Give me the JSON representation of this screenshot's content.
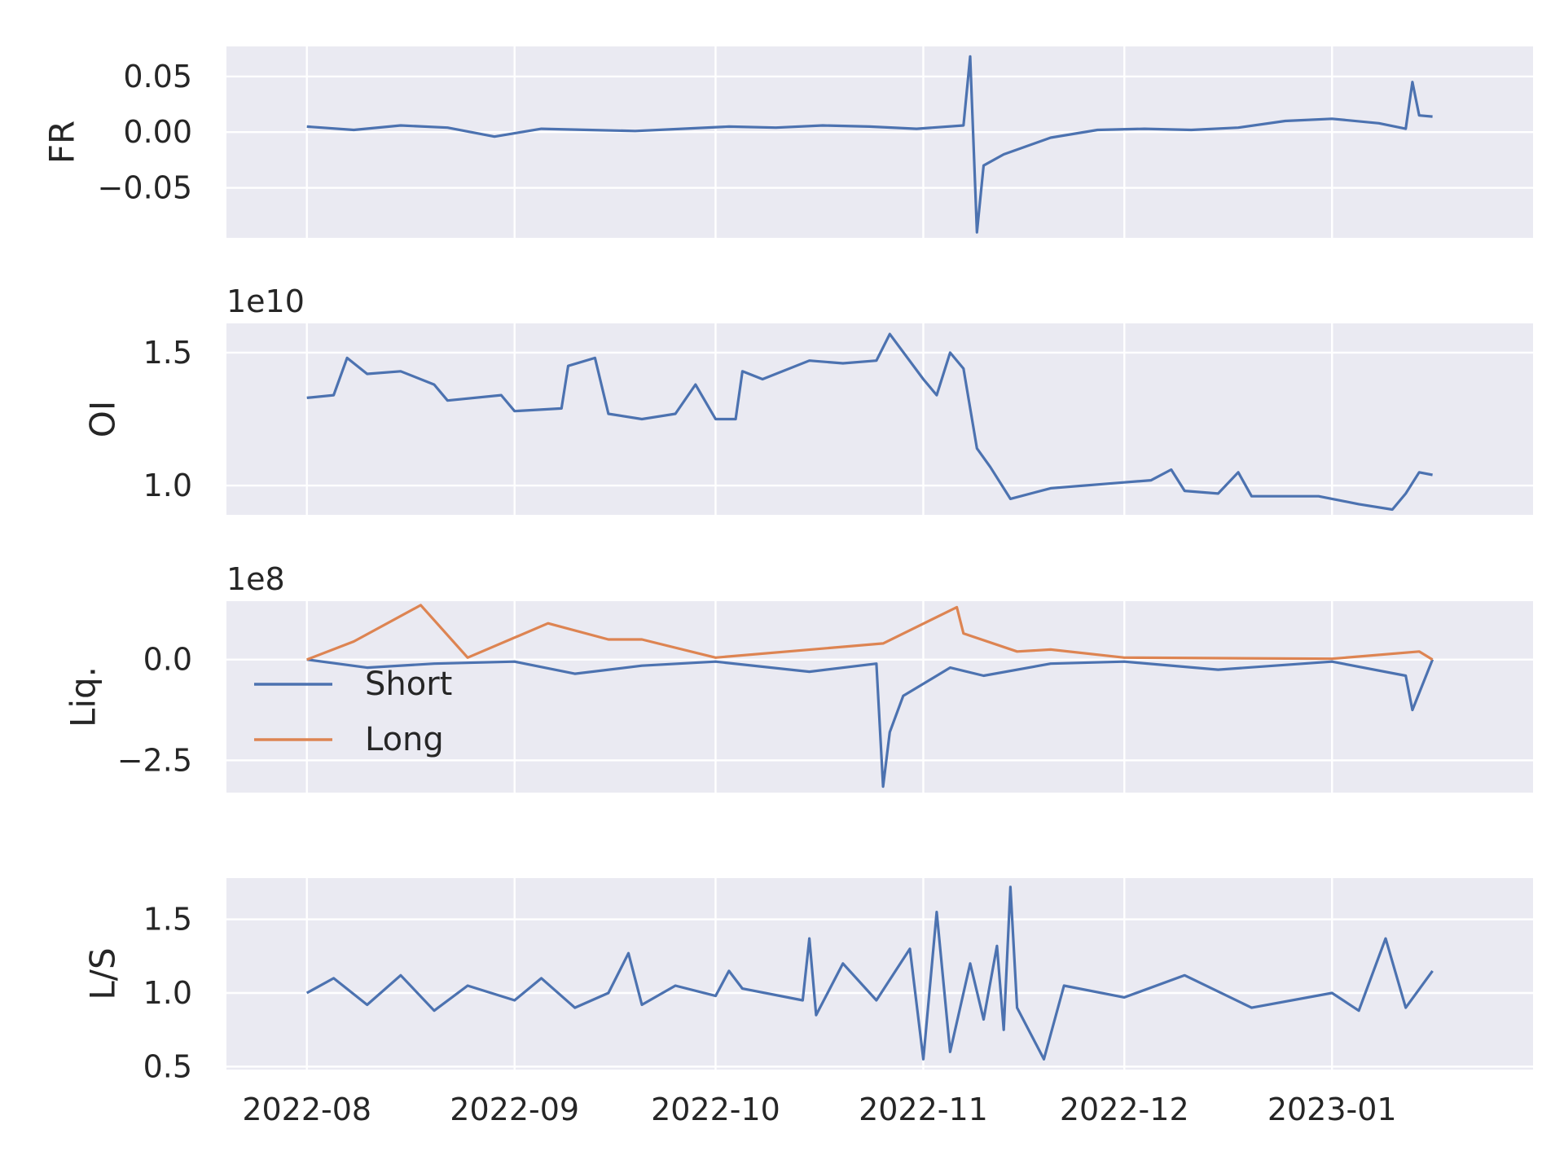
{
  "theme": {
    "facecolor": "#eaeaf2",
    "gridcolor": "#ffffff",
    "textcolor": "#262626",
    "series_colors": {
      "blue": "#4c72b0",
      "orange": "#dd8452"
    }
  },
  "x_axis": {
    "type": "date",
    "range": [
      "2022-07-20",
      "2023-01-31"
    ],
    "ticks": [
      "2022-08-01",
      "2022-09-01",
      "2022-10-01",
      "2022-11-01",
      "2022-12-01",
      "2023-01-01"
    ],
    "tick_labels": [
      "2022-08",
      "2022-09",
      "2022-10",
      "2022-11",
      "2022-12",
      "2023-01"
    ]
  },
  "chart_data": [
    {
      "type": "line",
      "ylabel": "FR",
      "offset_text": "",
      "ylim": [
        -0.095,
        0.077
      ],
      "yticks": [
        -0.05,
        0.0,
        0.05
      ],
      "ytick_labels": [
        "−0.05",
        "0.00",
        "0.05"
      ],
      "grid": true,
      "series": [
        {
          "color": "#4c72b0",
          "points": [
            [
              "2022-08-01",
              0.005
            ],
            [
              "2022-08-08",
              0.002
            ],
            [
              "2022-08-15",
              0.006
            ],
            [
              "2022-08-22",
              0.004
            ],
            [
              "2022-08-29",
              -0.004
            ],
            [
              "2022-09-05",
              0.003
            ],
            [
              "2022-09-12",
              0.002
            ],
            [
              "2022-09-19",
              0.001
            ],
            [
              "2022-09-26",
              0.003
            ],
            [
              "2022-10-03",
              0.005
            ],
            [
              "2022-10-10",
              0.004
            ],
            [
              "2022-10-17",
              0.006
            ],
            [
              "2022-10-24",
              0.005
            ],
            [
              "2022-10-31",
              0.003
            ],
            [
              "2022-11-07",
              0.006
            ],
            [
              "2022-11-08",
              0.068
            ],
            [
              "2022-11-09",
              -0.09
            ],
            [
              "2022-11-10",
              -0.03
            ],
            [
              "2022-11-13",
              -0.02
            ],
            [
              "2022-11-20",
              -0.005
            ],
            [
              "2022-11-27",
              0.002
            ],
            [
              "2022-12-04",
              0.003
            ],
            [
              "2022-12-11",
              0.002
            ],
            [
              "2022-12-18",
              0.004
            ],
            [
              "2022-12-25",
              0.01
            ],
            [
              "2023-01-01",
              0.012
            ],
            [
              "2023-01-08",
              0.008
            ],
            [
              "2023-01-12",
              0.003
            ],
            [
              "2023-01-13",
              0.045
            ],
            [
              "2023-01-14",
              0.015
            ],
            [
              "2023-01-16",
              0.014
            ]
          ]
        }
      ]
    },
    {
      "type": "line",
      "ylabel": "OI",
      "offset_text": "1e10",
      "ylim": [
        0.89,
        1.61
      ],
      "yticks": [
        1.0,
        1.5
      ],
      "ytick_labels": [
        "1.0",
        "1.5"
      ],
      "grid": true,
      "series": [
        {
          "color": "#4c72b0",
          "points": [
            [
              "2022-08-01",
              1.33
            ],
            [
              "2022-08-05",
              1.34
            ],
            [
              "2022-08-07",
              1.48
            ],
            [
              "2022-08-10",
              1.42
            ],
            [
              "2022-08-15",
              1.43
            ],
            [
              "2022-08-20",
              1.38
            ],
            [
              "2022-08-22",
              1.32
            ],
            [
              "2022-08-30",
              1.34
            ],
            [
              "2022-09-01",
              1.28
            ],
            [
              "2022-09-08",
              1.29
            ],
            [
              "2022-09-09",
              1.45
            ],
            [
              "2022-09-13",
              1.48
            ],
            [
              "2022-09-15",
              1.27
            ],
            [
              "2022-09-20",
              1.25
            ],
            [
              "2022-09-25",
              1.27
            ],
            [
              "2022-09-28",
              1.38
            ],
            [
              "2022-10-01",
              1.25
            ],
            [
              "2022-10-04",
              1.25
            ],
            [
              "2022-10-05",
              1.43
            ],
            [
              "2022-10-08",
              1.4
            ],
            [
              "2022-10-15",
              1.47
            ],
            [
              "2022-10-20",
              1.46
            ],
            [
              "2022-10-25",
              1.47
            ],
            [
              "2022-10-27",
              1.57
            ],
            [
              "2022-11-01",
              1.4
            ],
            [
              "2022-11-03",
              1.34
            ],
            [
              "2022-11-05",
              1.5
            ],
            [
              "2022-11-07",
              1.44
            ],
            [
              "2022-11-09",
              1.14
            ],
            [
              "2022-11-11",
              1.07
            ],
            [
              "2022-11-14",
              0.95
            ],
            [
              "2022-11-20",
              0.99
            ],
            [
              "2022-11-30",
              1.01
            ],
            [
              "2022-12-05",
              1.02
            ],
            [
              "2022-12-08",
              1.06
            ],
            [
              "2022-12-10",
              0.98
            ],
            [
              "2022-12-15",
              0.97
            ],
            [
              "2022-12-18",
              1.05
            ],
            [
              "2022-12-20",
              0.96
            ],
            [
              "2022-12-30",
              0.96
            ],
            [
              "2023-01-05",
              0.93
            ],
            [
              "2023-01-10",
              0.91
            ],
            [
              "2023-01-12",
              0.97
            ],
            [
              "2023-01-14",
              1.05
            ],
            [
              "2023-01-16",
              1.04
            ]
          ]
        }
      ]
    },
    {
      "type": "line",
      "ylabel": "Liq.",
      "offset_text": "1e8",
      "ylim": [
        -3.3,
        1.45
      ],
      "yticks": [
        -2.5,
        0.0
      ],
      "ytick_labels": [
        "−2.5",
        "0.0"
      ],
      "grid": true,
      "legend": {
        "loc": "center-left",
        "entries": [
          "Short",
          "Long"
        ]
      },
      "series": [
        {
          "name": "Short",
          "color": "#4c72b0",
          "points": [
            [
              "2022-08-01",
              0.0
            ],
            [
              "2022-08-10",
              -0.2
            ],
            [
              "2022-08-20",
              -0.1
            ],
            [
              "2022-09-01",
              -0.05
            ],
            [
              "2022-09-10",
              -0.35
            ],
            [
              "2022-09-20",
              -0.15
            ],
            [
              "2022-10-01",
              -0.05
            ],
            [
              "2022-10-15",
              -0.3
            ],
            [
              "2022-10-25",
              -0.1
            ],
            [
              "2022-10-26",
              -3.15
            ],
            [
              "2022-10-27",
              -1.8
            ],
            [
              "2022-10-29",
              -0.9
            ],
            [
              "2022-11-05",
              -0.2
            ],
            [
              "2022-11-10",
              -0.4
            ],
            [
              "2022-11-20",
              -0.1
            ],
            [
              "2022-12-01",
              -0.05
            ],
            [
              "2022-12-15",
              -0.25
            ],
            [
              "2023-01-01",
              -0.05
            ],
            [
              "2023-01-12",
              -0.4
            ],
            [
              "2023-01-13",
              -1.25
            ],
            [
              "2023-01-16",
              0.0
            ]
          ]
        },
        {
          "name": "Long",
          "color": "#dd8452",
          "points": [
            [
              "2022-08-01",
              0.0
            ],
            [
              "2022-08-08",
              0.45
            ],
            [
              "2022-08-18",
              1.35
            ],
            [
              "2022-08-25",
              0.05
            ],
            [
              "2022-09-06",
              0.9
            ],
            [
              "2022-09-15",
              0.5
            ],
            [
              "2022-09-20",
              0.5
            ],
            [
              "2022-10-01",
              0.05
            ],
            [
              "2022-10-26",
              0.4
            ],
            [
              "2022-11-06",
              1.3
            ],
            [
              "2022-11-07",
              0.65
            ],
            [
              "2022-11-15",
              0.2
            ],
            [
              "2022-11-20",
              0.25
            ],
            [
              "2022-12-01",
              0.05
            ],
            [
              "2023-01-01",
              0.02
            ],
            [
              "2023-01-14",
              0.2
            ],
            [
              "2023-01-16",
              0.0
            ]
          ]
        }
      ]
    },
    {
      "type": "line",
      "ylabel": "L/S",
      "offset_text": "",
      "ylim": [
        0.48,
        1.78
      ],
      "yticks": [
        0.5,
        1.0,
        1.5
      ],
      "ytick_labels": [
        "0.5",
        "1.0",
        "1.5"
      ],
      "grid": true,
      "series": [
        {
          "color": "#4c72b0",
          "points": [
            [
              "2022-08-01",
              1.0
            ],
            [
              "2022-08-05",
              1.1
            ],
            [
              "2022-08-10",
              0.92
            ],
            [
              "2022-08-15",
              1.12
            ],
            [
              "2022-08-20",
              0.88
            ],
            [
              "2022-08-25",
              1.05
            ],
            [
              "2022-09-01",
              0.95
            ],
            [
              "2022-09-05",
              1.1
            ],
            [
              "2022-09-10",
              0.9
            ],
            [
              "2022-09-15",
              1.0
            ],
            [
              "2022-09-18",
              1.27
            ],
            [
              "2022-09-20",
              0.92
            ],
            [
              "2022-09-25",
              1.05
            ],
            [
              "2022-10-01",
              0.98
            ],
            [
              "2022-10-03",
              1.15
            ],
            [
              "2022-10-05",
              1.03
            ],
            [
              "2022-10-14",
              0.95
            ],
            [
              "2022-10-15",
              1.37
            ],
            [
              "2022-10-16",
              0.85
            ],
            [
              "2022-10-20",
              1.2
            ],
            [
              "2022-10-25",
              0.95
            ],
            [
              "2022-10-30",
              1.3
            ],
            [
              "2022-11-01",
              0.55
            ],
            [
              "2022-11-03",
              1.55
            ],
            [
              "2022-11-05",
              0.6
            ],
            [
              "2022-11-08",
              1.2
            ],
            [
              "2022-11-10",
              0.82
            ],
            [
              "2022-11-12",
              1.32
            ],
            [
              "2022-11-13",
              0.75
            ],
            [
              "2022-11-14",
              1.72
            ],
            [
              "2022-11-15",
              0.9
            ],
            [
              "2022-11-19",
              0.55
            ],
            [
              "2022-11-22",
              1.05
            ],
            [
              "2022-12-01",
              0.97
            ],
            [
              "2022-12-10",
              1.12
            ],
            [
              "2022-12-20",
              0.9
            ],
            [
              "2023-01-01",
              1.0
            ],
            [
              "2023-01-05",
              0.88
            ],
            [
              "2023-01-09",
              1.37
            ],
            [
              "2023-01-12",
              0.9
            ],
            [
              "2023-01-16",
              1.15
            ]
          ]
        }
      ]
    }
  ]
}
